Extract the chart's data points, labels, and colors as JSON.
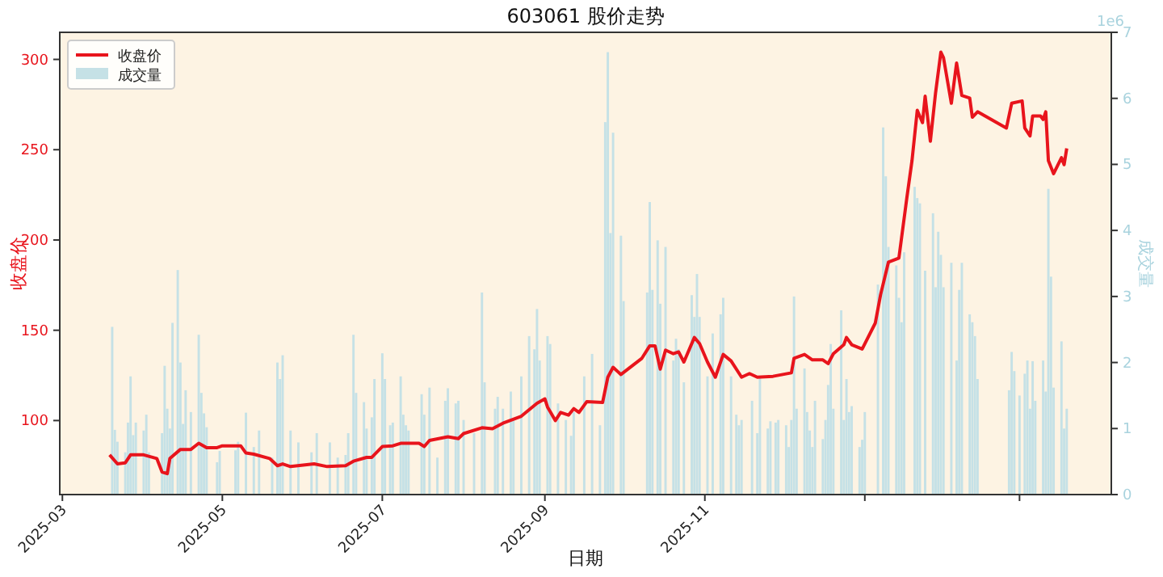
{
  "chart_data": {
    "type": "line",
    "title": "603061 股价走势",
    "xlabel": "日期",
    "ylabel": "收盘价",
    "y2label": "成交量",
    "annotations": [
      "1e6"
    ],
    "legend": "top left",
    "xlim": [
      "2025-02-28",
      "2026-04-05"
    ],
    "xticks": [
      "2025-03",
      "2025-05",
      "2025-07",
      "2025-09",
      "2025-11",
      {
        "value": "2026-01",
        "label": null
      },
      {
        "value": "2026-03",
        "label": null
      }
    ],
    "ylim": [
      59,
      315
    ],
    "yticks": [
      100,
      150,
      200,
      250,
      300
    ],
    "y2lim": [
      0,
      7
    ],
    "y2ticks": [
      0,
      1,
      2,
      3,
      4,
      5,
      6,
      7
    ],
    "series": [
      {
        "name": "收盘价",
        "color": "#e8141c",
        "x": [
          "2025-03-19",
          "2025-03-22",
          "2025-03-25",
          "2025-03-27",
          "2025-04-01",
          "2025-04-06",
          "2025-04-08",
          "2025-04-10",
          "2025-04-11",
          "2025-04-15",
          "2025-04-19",
          "2025-04-22",
          "2025-04-25",
          "2025-04-29",
          "2025-05-01",
          "2025-05-08",
          "2025-05-10",
          "2025-05-13",
          "2025-05-19",
          "2025-05-22",
          "2025-05-24",
          "2025-05-27",
          "2025-06-05",
          "2025-06-10",
          "2025-06-17",
          "2025-06-20",
          "2025-06-25",
          "2025-06-27",
          "2025-07-01",
          "2025-07-05",
          "2025-07-08",
          "2025-07-15",
          "2025-07-17",
          "2025-07-19",
          "2025-07-26",
          "2025-07-30",
          "2025-08-01",
          "2025-08-08",
          "2025-08-12",
          "2025-08-16",
          "2025-08-23",
          "2025-08-29",
          "2025-09-01",
          "2025-09-02",
          "2025-09-05",
          "2025-09-07",
          "2025-09-10",
          "2025-09-12",
          "2025-09-14",
          "2025-09-17",
          "2025-09-23",
          "2025-09-25",
          "2025-09-27",
          "2025-09-30",
          "2025-10-08",
          "2025-10-11",
          "2025-10-13",
          "2025-10-15",
          "2025-10-17",
          "2025-10-20",
          "2025-10-22",
          "2025-10-24",
          "2025-10-28",
          "2025-10-30",
          "2025-11-02",
          "2025-11-05",
          "2025-11-08",
          "2025-11-11",
          "2025-11-15",
          "2025-11-18",
          "2025-11-21",
          "2025-11-27",
          "2025-12-04",
          "2025-12-05",
          "2025-12-09",
          "2025-12-12",
          "2025-12-16",
          "2025-12-18",
          "2025-12-20",
          "2025-12-24",
          "2025-12-25",
          "2025-12-27",
          "2025-12-31",
          "2026-01-05",
          "2026-01-07",
          "2026-01-10",
          "2026-01-14",
          "2026-01-15",
          "2026-01-17",
          "2026-01-19",
          "2026-01-21",
          "2026-01-23",
          "2026-01-24",
          "2026-01-26",
          "2026-01-28",
          "2026-01-30",
          "2026-01-31",
          "2026-02-03",
          "2026-02-05",
          "2026-02-07",
          "2026-02-10",
          "2026-02-11",
          "2026-02-13",
          "2026-02-24",
          "2026-02-26",
          "2026-03-02",
          "2026-03-03",
          "2026-03-05",
          "2026-03-06",
          "2026-03-09",
          "2026-03-10",
          "2026-03-11",
          "2026-03-12",
          "2026-03-14",
          "2026-03-17",
          "2026-03-18",
          "2026-03-19"
        ],
        "values": [
          81,
          76,
          76.6,
          81,
          81,
          79,
          71.5,
          70.6,
          79,
          84,
          84,
          87.4,
          85,
          85,
          86,
          86,
          82,
          81.4,
          79,
          75,
          76,
          74.5,
          76,
          74.5,
          75,
          77.5,
          79.6,
          79.6,
          85.6,
          86,
          87.4,
          87.4,
          85.6,
          89,
          91,
          90,
          92.8,
          96,
          95.5,
          98.5,
          102.4,
          109.6,
          112,
          107.5,
          100,
          104.5,
          103,
          106.6,
          104.5,
          110.5,
          110,
          124,
          129.5,
          125.5,
          134.5,
          141.4,
          141.4,
          128.5,
          139,
          137,
          138,
          132.4,
          146,
          142.6,
          132.4,
          124,
          136.6,
          133,
          124,
          126,
          124,
          124.5,
          126.4,
          134.5,
          136.6,
          133.6,
          133.6,
          131.5,
          137,
          142,
          146,
          142,
          139.6,
          154,
          169.6,
          187.7,
          190,
          201,
          223,
          244,
          271.8,
          265,
          279.6,
          254.7,
          281.7,
          304,
          301,
          275.7,
          298,
          280,
          278.6,
          268,
          271,
          262,
          275.7,
          277,
          262,
          257.6,
          268.7,
          268.7,
          266.7,
          271,
          244,
          236.7,
          245.6,
          241.7,
          250.7
        ]
      },
      {
        "name": "成交量",
        "type": "bar",
        "axis": "y2",
        "color": "#c5e1e6",
        "x": [
          "2025-03-20",
          "2025-03-21",
          "2025-03-22",
          "2025-03-25",
          "2025-03-26",
          "2025-03-27",
          "2025-03-28",
          "2025-03-29",
          "2025-04-01",
          "2025-04-02",
          "2025-04-03",
          "2025-04-08",
          "2025-04-09",
          "2025-04-10",
          "2025-04-11",
          "2025-04-12",
          "2025-04-14",
          "2025-04-15",
          "2025-04-16",
          "2025-04-17",
          "2025-04-19",
          "2025-04-22",
          "2025-04-23",
          "2025-04-24",
          "2025-04-25",
          "2025-04-29",
          "2025-04-30",
          "2025-05-06",
          "2025-05-07",
          "2025-05-10",
          "2025-05-13",
          "2025-05-15",
          "2025-05-20",
          "2025-05-22",
          "2025-05-23",
          "2025-05-24",
          "2025-05-27",
          "2025-05-30",
          "2025-06-04",
          "2025-06-06",
          "2025-06-11",
          "2025-06-14",
          "2025-06-17",
          "2025-06-18",
          "2025-06-20",
          "2025-06-21",
          "2025-06-24",
          "2025-06-25",
          "2025-06-27",
          "2025-06-28",
          "2025-07-01",
          "2025-07-02",
          "2025-07-04",
          "2025-07-05",
          "2025-07-08",
          "2025-07-09",
          "2025-07-10",
          "2025-07-11",
          "2025-07-16",
          "2025-07-17",
          "2025-07-19",
          "2025-07-22",
          "2025-07-25",
          "2025-07-26",
          "2025-07-29",
          "2025-07-30",
          "2025-08-01",
          "2025-08-05",
          "2025-08-08",
          "2025-08-09",
          "2025-08-13",
          "2025-08-14",
          "2025-08-16",
          "2025-08-19",
          "2025-08-20",
          "2025-08-23",
          "2025-08-26",
          "2025-08-28",
          "2025-08-29",
          "2025-08-30",
          "2025-09-02",
          "2025-09-03",
          "2025-09-06",
          "2025-09-09",
          "2025-09-11",
          "2025-09-12",
          "2025-09-16",
          "2025-09-19",
          "2025-09-22",
          "2025-09-24",
          "2025-09-25",
          "2025-09-26",
          "2025-09-27",
          "2025-09-30",
          "2025-10-01",
          "2025-10-10",
          "2025-10-11",
          "2025-10-12",
          "2025-10-14",
          "2025-10-15",
          "2025-10-17",
          "2025-10-20",
          "2025-10-21",
          "2025-10-22",
          "2025-10-24",
          "2025-10-27",
          "2025-10-28",
          "2025-10-29",
          "2025-10-30",
          "2025-11-02",
          "2025-11-04",
          "2025-11-07",
          "2025-11-08",
          "2025-11-11",
          "2025-11-13",
          "2025-11-14",
          "2025-11-15",
          "2025-11-19",
          "2025-11-21",
          "2025-11-22",
          "2025-11-25",
          "2025-11-26",
          "2025-11-28",
          "2025-11-29",
          "2025-12-02",
          "2025-12-03",
          "2025-12-04",
          "2025-12-05",
          "2025-12-06",
          "2025-12-09",
          "2025-12-10",
          "2025-12-11",
          "2025-12-12",
          "2025-12-13",
          "2025-12-16",
          "2025-12-17",
          "2025-12-18",
          "2025-12-19",
          "2025-12-20",
          "2025-12-23",
          "2025-12-24",
          "2025-12-25",
          "2025-12-26",
          "2025-12-27",
          "2025-12-30",
          "2025-12-31",
          "2026-01-01",
          "2026-01-06",
          "2026-01-08",
          "2026-01-09",
          "2026-01-10",
          "2026-01-13",
          "2026-01-14",
          "2026-01-15",
          "2026-01-16",
          "2026-01-20",
          "2026-01-21",
          "2026-01-22",
          "2026-01-24",
          "2026-01-27",
          "2026-01-28",
          "2026-01-29",
          "2026-01-30",
          "2026-01-31",
          "2026-02-03",
          "2026-02-05",
          "2026-02-06",
          "2026-02-07",
          "2026-02-10",
          "2026-02-11",
          "2026-02-12",
          "2026-02-13",
          "2026-02-25",
          "2026-02-26",
          "2026-02-27",
          "2026-03-01",
          "2026-03-03",
          "2026-03-04",
          "2026-03-05",
          "2026-03-06",
          "2026-03-07",
          "2026-03-10",
          "2026-03-11",
          "2026-03-12",
          "2026-03-13",
          "2026-03-14",
          "2026-03-17",
          "2026-03-18",
          "2026-03-19"
        ],
        "values": [
          2.54,
          0.98,
          0.8,
          0.64,
          1.09,
          1.79,
          0.9,
          1.09,
          0.97,
          1.21,
          0.64,
          0.93,
          1.95,
          1.3,
          1.0,
          2.6,
          3.4,
          2.0,
          1.07,
          1.58,
          1.25,
          2.42,
          1.54,
          1.23,
          1.02,
          0.49,
          0.66,
          0.67,
          0.8,
          1.24,
          0.72,
          0.97,
          0.56,
          2.0,
          1.75,
          2.11,
          0.97,
          0.79,
          0.64,
          0.93,
          0.79,
          0.56,
          0.6,
          0.93,
          2.42,
          1.54,
          1.4,
          1.0,
          1.17,
          1.75,
          2.14,
          1.75,
          1.05,
          1.09,
          1.79,
          1.21,
          1.05,
          0.97,
          1.52,
          1.21,
          1.62,
          0.56,
          1.42,
          1.61,
          1.38,
          1.42,
          1.13,
          0.93,
          3.06,
          1.7,
          1.3,
          1.48,
          1.3,
          1.56,
          1.13,
          1.79,
          2.4,
          2.2,
          2.81,
          2.03,
          2.4,
          2.28,
          1.38,
          1.13,
          0.89,
          1.25,
          1.79,
          2.13,
          1.05,
          5.64,
          6.7,
          3.96,
          5.48,
          3.92,
          2.93,
          3.06,
          4.43,
          3.1,
          3.85,
          2.89,
          3.75,
          2.03,
          2.36,
          2.2,
          1.7,
          3.02,
          2.69,
          3.34,
          2.69,
          1.79,
          2.44,
          2.73,
          2.98,
          1.79,
          1.21,
          1.05,
          1.13,
          1.42,
          0.93,
          1.79,
          1.0,
          1.11,
          1.09,
          1.13,
          1.05,
          0.72,
          1.13,
          3.0,
          1.3,
          1.91,
          1.25,
          0.97,
          0.72,
          1.42,
          0.84,
          1.13,
          1.66,
          2.28,
          1.3,
          2.79,
          1.13,
          1.75,
          1.25,
          1.34,
          0.72,
          0.83,
          1.25,
          3.18,
          5.56,
          4.82,
          3.75,
          3.47,
          2.98,
          2.61,
          3.67,
          4.66,
          4.49,
          4.41,
          3.39,
          4.26,
          3.14,
          3.98,
          3.63,
          3.14,
          3.51,
          2.03,
          3.1,
          3.51,
          2.73,
          2.61,
          2.4,
          1.75,
          1.58,
          2.16,
          1.87,
          1.5,
          1.83,
          2.03,
          1.3,
          2.02,
          1.42,
          2.03,
          1.56,
          4.63,
          3.3,
          1.62,
          2.32,
          1.0,
          1.3
        ]
      }
    ]
  }
}
